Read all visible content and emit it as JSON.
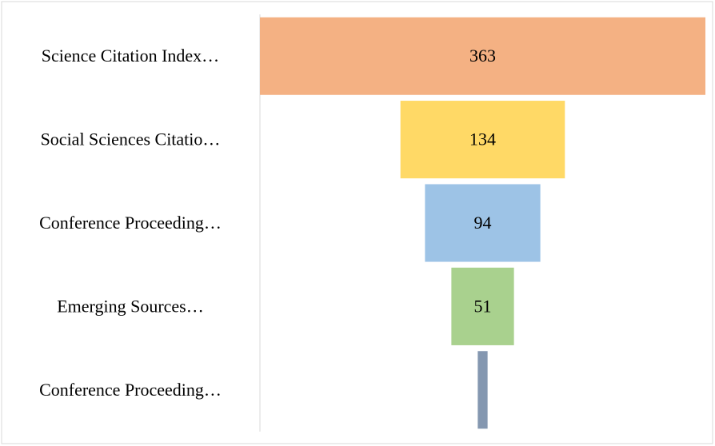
{
  "chart_data": {
    "type": "funnel",
    "categories": [
      "Science Citation Index…",
      "Social Sciences Citatio…",
      "Conference Proceeding…",
      "Emerging Sources…",
      "Conference Proceeding…"
    ],
    "values": [
      363,
      134,
      94,
      51,
      8
    ],
    "colors": [
      "#f4b183",
      "#ffd966",
      "#9dc3e6",
      "#a9d18e",
      "#8497b0"
    ]
  }
}
